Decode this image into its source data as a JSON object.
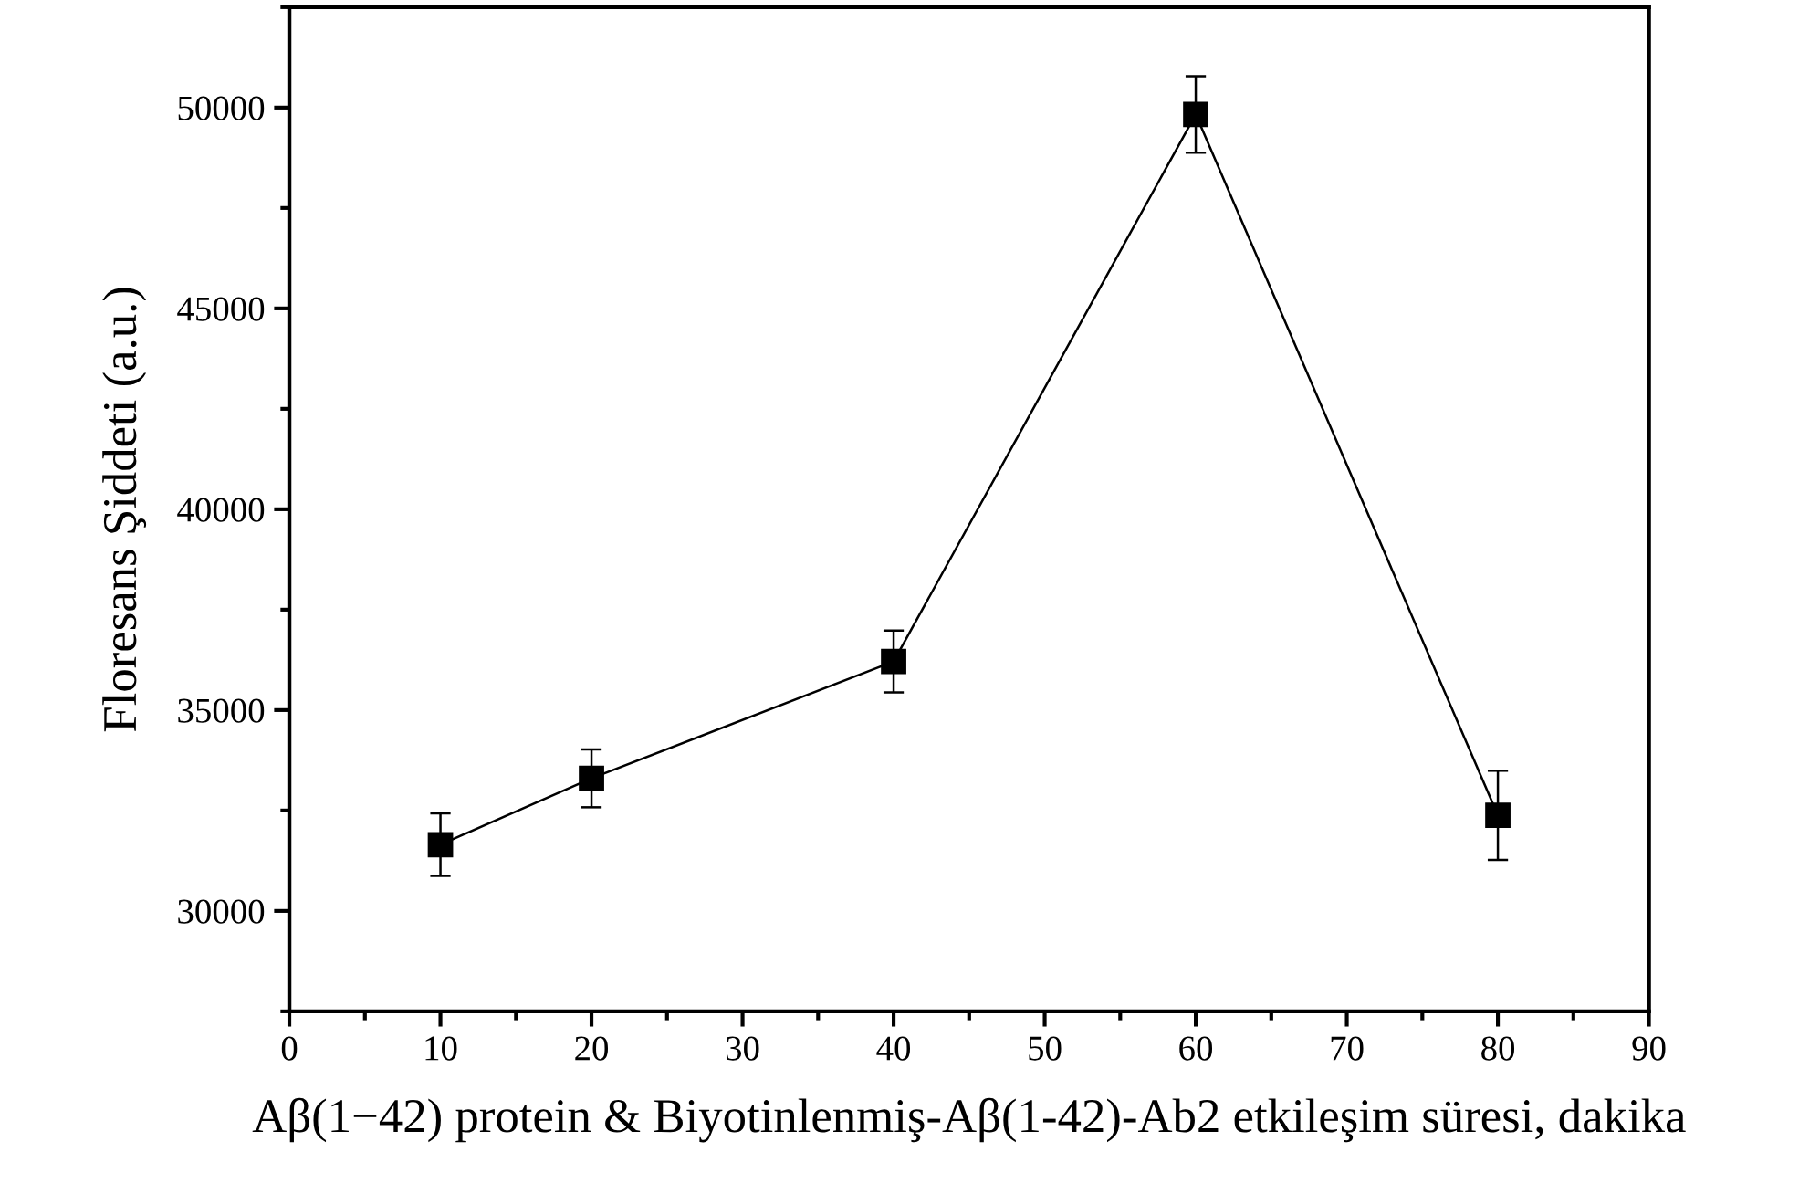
{
  "chart_data": {
    "type": "line",
    "xlabel": "Aβ(1−42) protein & Biyotinlenmiş-Aβ(1-42)-Ab2 etkileşim süresi, dakika",
    "ylabel": "Floresans Şiddeti (a.u.)",
    "x": [
      10,
      20,
      40,
      60,
      80
    ],
    "series": [
      {
        "color": "#000000",
        "values": [
          31650,
          33300,
          36210,
          49830,
          32380
        ],
        "errors": [
          780,
          720,
          770,
          950,
          1110
        ]
      }
    ],
    "marker": "square",
    "line_style": "solid",
    "xlim": [
      0,
      90
    ],
    "xticks": [
      0,
      10,
      20,
      30,
      40,
      50,
      60,
      70,
      80,
      90
    ],
    "ylim": [
      27500,
      52500
    ],
    "yticks": [
      30000,
      35000,
      40000,
      45000,
      50000
    ],
    "grid": false
  }
}
